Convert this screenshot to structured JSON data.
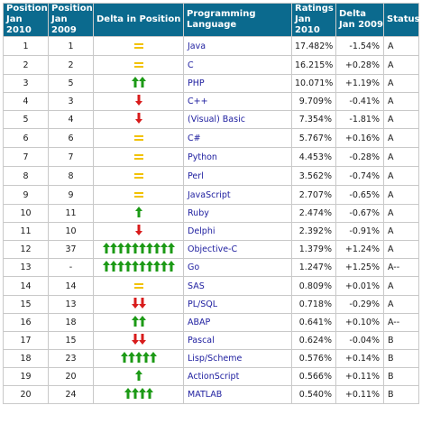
{
  "colors": {
    "header_bg": "#0b6a8e",
    "header_text": "#ffffff",
    "up": "#1c9a16",
    "down": "#d81c1c",
    "same": "#f2c200",
    "lang_text": "#2020a0"
  },
  "table": {
    "headers": {
      "pos2010_l1": "Position",
      "pos2010_l2": "Jan 2010",
      "pos2009_l1": "Position",
      "pos2009_l2": "Jan 2009",
      "delta_pos": "Delta in Position",
      "language": "Programming Language",
      "ratings_l1": "Ratings",
      "ratings_l2": "Jan 2010",
      "delta_l1": "Delta",
      "delta_l2": "Jan 2009",
      "status": "Status"
    },
    "rows": [
      {
        "pos2010": "1",
        "pos2009": "1",
        "trend": "same",
        "count": 1,
        "language": "Java",
        "rating": "17.482%",
        "delta": "-1.54%",
        "status": "A"
      },
      {
        "pos2010": "2",
        "pos2009": "2",
        "trend": "same",
        "count": 1,
        "language": "C",
        "rating": "16.215%",
        "delta": "+0.28%",
        "status": "A"
      },
      {
        "pos2010": "3",
        "pos2009": "5",
        "trend": "up",
        "count": 2,
        "language": "PHP",
        "rating": "10.071%",
        "delta": "+1.19%",
        "status": "A"
      },
      {
        "pos2010": "4",
        "pos2009": "3",
        "trend": "down",
        "count": 1,
        "language": "C++",
        "rating": "9.709%",
        "delta": "-0.41%",
        "status": "A"
      },
      {
        "pos2010": "5",
        "pos2009": "4",
        "trend": "down",
        "count": 1,
        "language": "(Visual) Basic",
        "rating": "7.354%",
        "delta": "-1.81%",
        "status": "A"
      },
      {
        "pos2010": "6",
        "pos2009": "6",
        "trend": "same",
        "count": 1,
        "language": "C#",
        "rating": "5.767%",
        "delta": "+0.16%",
        "status": "A"
      },
      {
        "pos2010": "7",
        "pos2009": "7",
        "trend": "same",
        "count": 1,
        "language": "Python",
        "rating": "4.453%",
        "delta": "-0.28%",
        "status": "A"
      },
      {
        "pos2010": "8",
        "pos2009": "8",
        "trend": "same",
        "count": 1,
        "language": "Perl",
        "rating": "3.562%",
        "delta": "-0.74%",
        "status": "A"
      },
      {
        "pos2010": "9",
        "pos2009": "9",
        "trend": "same",
        "count": 1,
        "language": "JavaScript",
        "rating": "2.707%",
        "delta": "-0.65%",
        "status": "A"
      },
      {
        "pos2010": "10",
        "pos2009": "11",
        "trend": "up",
        "count": 1,
        "language": "Ruby",
        "rating": "2.474%",
        "delta": "-0.67%",
        "status": "A"
      },
      {
        "pos2010": "11",
        "pos2009": "10",
        "trend": "down",
        "count": 1,
        "language": "Delphi",
        "rating": "2.392%",
        "delta": "-0.91%",
        "status": "A"
      },
      {
        "pos2010": "12",
        "pos2009": "37",
        "trend": "up",
        "count": 10,
        "language": "Objective-C",
        "rating": "1.379%",
        "delta": "+1.24%",
        "status": "A"
      },
      {
        "pos2010": "13",
        "pos2009": "-",
        "trend": "up",
        "count": 10,
        "language": "Go",
        "rating": "1.247%",
        "delta": "+1.25%",
        "status": "A--"
      },
      {
        "pos2010": "14",
        "pos2009": "14",
        "trend": "same",
        "count": 1,
        "language": "SAS",
        "rating": "0.809%",
        "delta": "+0.01%",
        "status": "A"
      },
      {
        "pos2010": "15",
        "pos2009": "13",
        "trend": "down",
        "count": 2,
        "language": "PL/SQL",
        "rating": "0.718%",
        "delta": "-0.29%",
        "status": "A"
      },
      {
        "pos2010": "16",
        "pos2009": "18",
        "trend": "up",
        "count": 2,
        "language": "ABAP",
        "rating": "0.641%",
        "delta": "+0.10%",
        "status": "A--"
      },
      {
        "pos2010": "17",
        "pos2009": "15",
        "trend": "down",
        "count": 2,
        "language": "Pascal",
        "rating": "0.624%",
        "delta": "-0.04%",
        "status": "B"
      },
      {
        "pos2010": "18",
        "pos2009": "23",
        "trend": "up",
        "count": 5,
        "language": "Lisp/Scheme",
        "rating": "0.576%",
        "delta": "+0.14%",
        "status": "B"
      },
      {
        "pos2010": "19",
        "pos2009": "20",
        "trend": "up",
        "count": 1,
        "language": "ActionScript",
        "rating": "0.566%",
        "delta": "+0.11%",
        "status": "B"
      },
      {
        "pos2010": "20",
        "pos2009": "24",
        "trend": "up",
        "count": 4,
        "language": "MATLAB",
        "rating": "0.540%",
        "delta": "+0.11%",
        "status": "B"
      }
    ]
  }
}
